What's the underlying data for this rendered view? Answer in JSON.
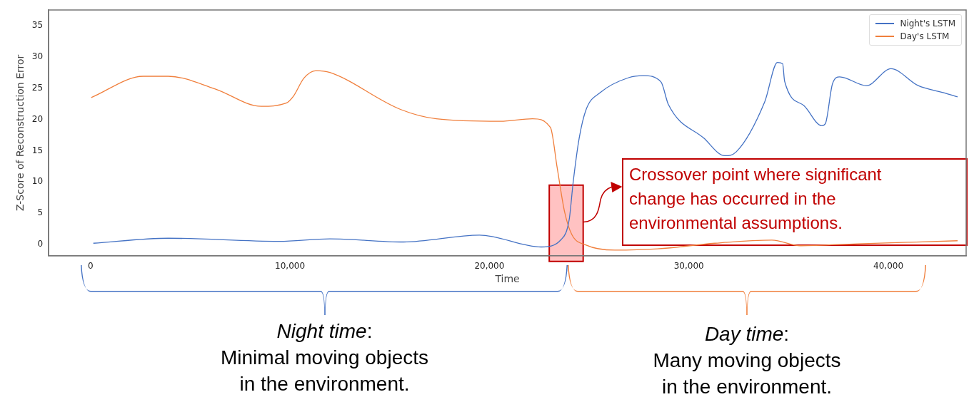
{
  "chart_data": {
    "type": "line",
    "xlabel": "Time",
    "ylabel": "Z-Score of Reconstruction Error",
    "xlim": [
      -2100,
      43900
    ],
    "xticks": [
      {
        "value": 0,
        "label": "0"
      },
      {
        "value": 10000,
        "label": "10,000"
      },
      {
        "value": 20000,
        "label": "20,000"
      },
      {
        "value": 30000,
        "label": "30,000"
      },
      {
        "value": 40000,
        "label": "40,000"
      }
    ],
    "ylim": [
      -1.8,
      37.5
    ],
    "yticks": [
      0,
      5,
      10,
      15,
      20,
      25,
      30,
      35
    ],
    "grid": false,
    "legend": "top right",
    "marker": "none",
    "line_style": "solid",
    "series": [
      {
        "name": "Night's LSTM",
        "color": "#4472c4",
        "x": [
          143,
          3900,
          9450,
          12000,
          15700,
          19500,
          22600,
          23600,
          24000,
          24200,
          24500,
          24850,
          25560,
          27000,
          27700,
          28600,
          28970,
          30750,
          31800,
          32370,
          33800,
          34440,
          34700,
          34800,
          35770,
          36660,
          36840,
          37200,
          37560,
          38900,
          40130,
          41500,
          42750,
          43470
        ],
        "values": [
          0.2,
          1.0,
          0.5,
          0.9,
          0.4,
          1.5,
          -0.4,
          0.8,
          4,
          10,
          17,
          21.6,
          24.3,
          26.7,
          27,
          26,
          22.4,
          17,
          14.2,
          14.8,
          22.8,
          29.1,
          28.9,
          26.1,
          22.2,
          19,
          19.3,
          25.7,
          26.8,
          25.4,
          28.1,
          25.4,
          24.3,
          23.6
        ]
      },
      {
        "name": "Day's LSTM",
        "color": "#f07f3c",
        "x": [
          36,
          2650,
          3900,
          6230,
          8560,
          9810,
          10170,
          10700,
          11310,
          12000,
          15540,
          17330,
          20550,
          22160,
          23060,
          23400,
          23770,
          24130,
          24850,
          26280,
          28430,
          31300,
          34160,
          35600,
          38450,
          43470
        ],
        "values": [
          23.5,
          26.9,
          26.9,
          24.9,
          22.1,
          22.6,
          23.7,
          26.6,
          27.8,
          27.5,
          21.6,
          20.1,
          19.7,
          20.1,
          18.7,
          12.2,
          5.2,
          1.6,
          -0.1,
          -0.9,
          -0.7,
          0.2,
          0.7,
          -0.2,
          0.1,
          0.6
        ]
      }
    ],
    "annotations": [
      {
        "text": "Crossover point where significant change has occurred in the environmental assumptions.",
        "x": 24700,
        "y": 3.6
      },
      "Night time: Minimal moving objects in the environment.",
      "Day time: Many moving objects in the environment."
    ],
    "bands": [
      {
        "axis": "x",
        "from": 23000,
        "to": 24700,
        "color": "#ff9999"
      }
    ]
  }
}
